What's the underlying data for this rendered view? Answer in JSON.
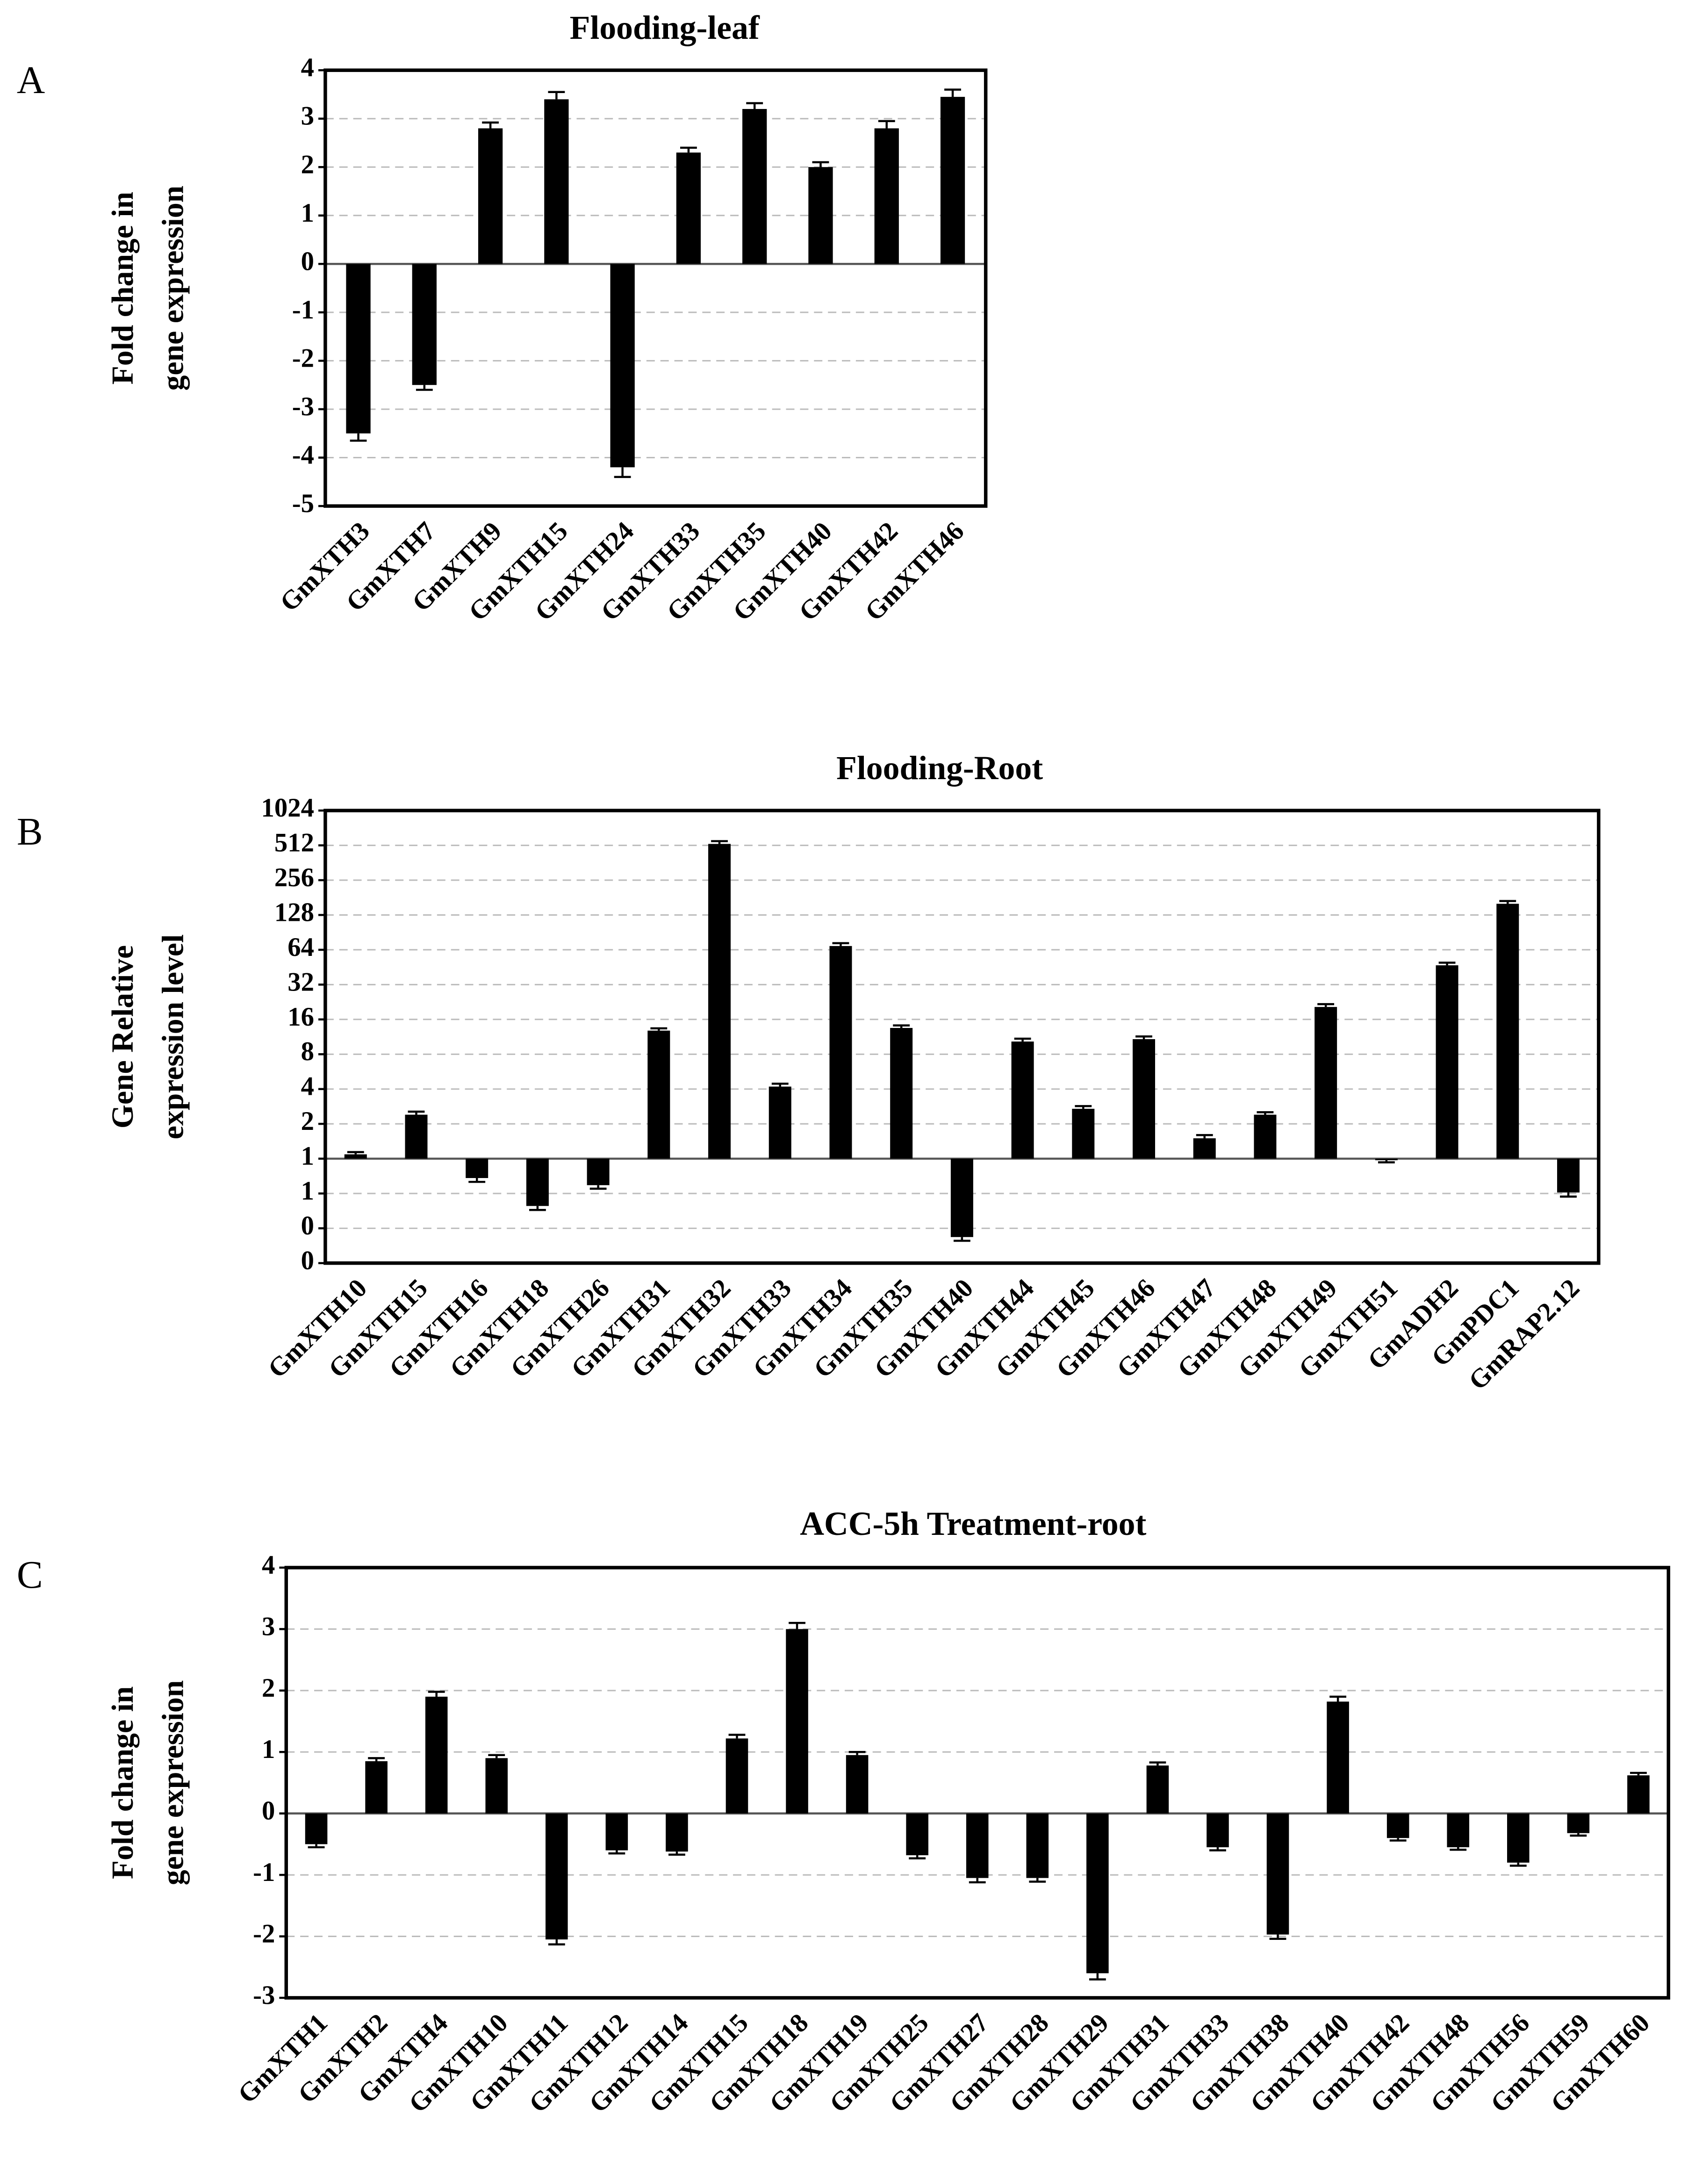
{
  "chart_data": [
    {
      "type": "bar",
      "panel": "A",
      "title": "Flooding-leaf",
      "ylabel": [
        "Fold change in",
        "gene expression"
      ],
      "categories": [
        "GmXTH3",
        "GmXTH7",
        "GmXTH9",
        "GmXTH15",
        "GmXTH24",
        "GmXTH33",
        "GmXTH35",
        "GmXTH40",
        "GmXTH42",
        "GmXTH46"
      ],
      "values": [
        -3.5,
        -2.5,
        2.8,
        3.4,
        -4.2,
        2.3,
        3.2,
        2.0,
        2.8,
        3.45
      ],
      "errors": [
        0.15,
        0.1,
        0.12,
        0.15,
        0.2,
        0.1,
        0.12,
        0.1,
        0.15,
        0.15
      ],
      "color": "#000000",
      "ylim": [
        -5,
        4
      ],
      "yticks": [
        -5,
        -4,
        -3,
        -2,
        -1,
        0,
        1,
        2,
        3,
        4
      ],
      "grid": true
    },
    {
      "type": "bar",
      "panel": "B",
      "title": "Flooding-Root",
      "ylabel": [
        "Gene Relative",
        "expression level"
      ],
      "yscale": "log",
      "categories": [
        "GmXTH10",
        "GmXTH15",
        "GmXTH16",
        "GmXTH18",
        "GmXTH26",
        "GmXTH31",
        "GmXTH32",
        "GmXTH33",
        "GmXTH34",
        "GmXTH35",
        "GmXTH40",
        "GmXTH44",
        "GmXTH45",
        "GmXTH46",
        "GmXTH47",
        "GmXTH48",
        "GmXTH49",
        "GmXTH51",
        "GmADH2",
        "GmPDC1",
        "GmRAP2.12"
      ],
      "values": [
        1.09,
        2.4,
        0.68,
        0.39,
        0.59,
        12.8,
        527,
        4.2,
        69,
        13.5,
        0.21,
        10.3,
        2.7,
        10.8,
        1.5,
        2.4,
        20.5,
        0.97,
        47,
        160,
        0.51
      ],
      "errors": [
        0.05,
        0.15,
        0.05,
        0.03,
        0.04,
        0.6,
        30,
        0.25,
        4,
        0.7,
        0.015,
        0.6,
        0.15,
        0.6,
        0.1,
        0.12,
        1.2,
        0.04,
        2.5,
        9,
        0.04
      ],
      "color": "#000000",
      "ylim": [
        0.125,
        1024
      ],
      "yticks": [
        {
          "value": 0.125,
          "label": "0"
        },
        {
          "value": 0.25,
          "label": "0"
        },
        {
          "value": 0.5,
          "label": "1"
        },
        1,
        2,
        4,
        8,
        16,
        32,
        64,
        128,
        256,
        512,
        1024
      ],
      "grid": true
    },
    {
      "type": "bar",
      "panel": "C",
      "title": "ACC-5h Treatment-root",
      "ylabel": [
        "Fold change in",
        "gene expression"
      ],
      "categories": [
        "GmXTH1",
        "GmXTH2",
        "GmXTH4",
        "GmXTH10",
        "GmXTH11",
        "GmXTH12",
        "GmXTH14",
        "GmXTH15",
        "GmXTH18",
        "GmXTH19",
        "GmXTH25",
        "GmXTH27",
        "GmXTH28",
        "GmXTH29",
        "GmXTH31",
        "GmXTH33",
        "GmXTH38",
        "GmXTH40",
        "GmXTH42",
        "GmXTH48",
        "GmXTH56",
        "GmXTH59",
        "GmXTH60"
      ],
      "values": [
        -0.5,
        0.85,
        1.9,
        0.9,
        -2.05,
        -0.6,
        -0.62,
        1.22,
        3.0,
        0.95,
        -0.68,
        -1.05,
        -1.05,
        -2.6,
        0.78,
        -0.55,
        -1.97,
        1.82,
        -0.4,
        -0.55,
        -0.8,
        -0.32,
        0.62
      ],
      "errors": [
        0.05,
        0.05,
        0.08,
        0.05,
        0.08,
        0.05,
        0.05,
        0.06,
        0.1,
        0.05,
        0.05,
        0.07,
        0.06,
        0.1,
        0.05,
        0.05,
        0.07,
        0.08,
        0.04,
        0.04,
        0.05,
        0.04,
        0.04
      ],
      "color": "#000000",
      "ylim": [
        -3,
        4
      ],
      "yticks": [
        -3,
        -2,
        -1,
        0,
        1,
        2,
        3,
        4
      ],
      "grid": true
    }
  ]
}
